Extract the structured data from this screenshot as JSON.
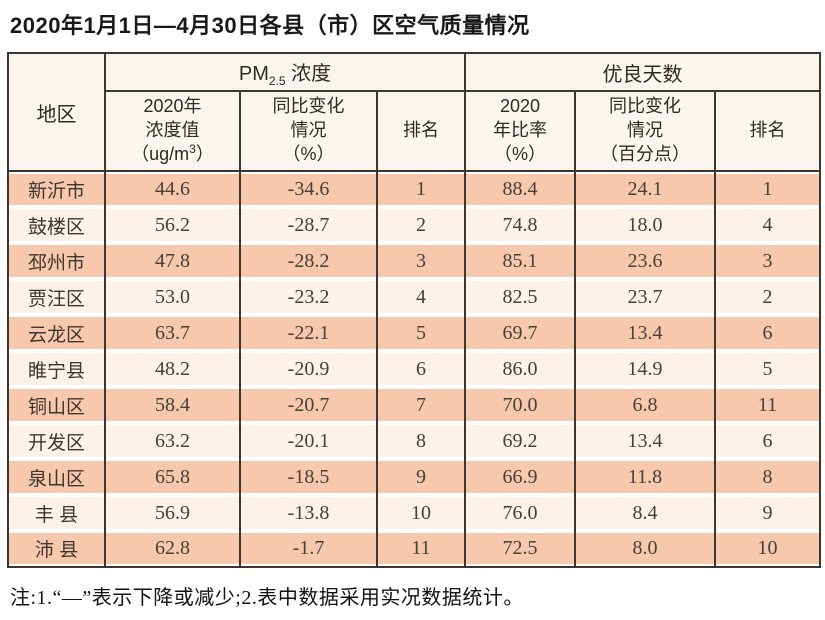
{
  "title": "2020年1月1日—4月30日各县（市）区空气质量情况",
  "note": "注:1.“—”表示下降或减少;2.表中数据采用实况数据统计。",
  "table": {
    "header": {
      "region": "地区",
      "pm25_group": {
        "prefix": "PM",
        "sub": "2.5",
        "suffix": " 浓度"
      },
      "good_days_group": "优良天数",
      "pm25_value": {
        "line1": "2020年",
        "line2": "浓度值",
        "unit_pre": "（ug/m",
        "unit_sup": "3",
        "unit_post": "）"
      },
      "pm25_change": {
        "line1": "同比变化",
        "line2": "情况",
        "line3": "（%）"
      },
      "pm25_rank": "排名",
      "ratio": {
        "line1": "2020",
        "line2": "年比率",
        "line3": "（%）"
      },
      "ratio_change": {
        "line1": "同比变化",
        "line2": "情况",
        "line3": "（百分点）"
      },
      "ratio_rank": "排名"
    }
  },
  "chart_data": {
    "type": "table",
    "title": "2020年1月1日—4月30日各县（市）区空气质量情况",
    "column_groups": [
      "PM2.5浓度",
      "优良天数"
    ],
    "columns": [
      "地区",
      "2020年浓度值（ug/m³）",
      "同比变化情况（%）",
      "排名",
      "2020年比率（%）",
      "同比变化情况（百分点）",
      "排名"
    ],
    "rows": [
      [
        "新沂市",
        "44.6",
        "-34.6",
        "1",
        "88.4",
        "24.1",
        "1"
      ],
      [
        "鼓楼区",
        "56.2",
        "-28.7",
        "2",
        "74.8",
        "18.0",
        "4"
      ],
      [
        "邳州市",
        "47.8",
        "-28.2",
        "3",
        "85.1",
        "23.6",
        "3"
      ],
      [
        "贾汪区",
        "53.0",
        "-23.2",
        "4",
        "82.5",
        "23.7",
        "2"
      ],
      [
        "云龙区",
        "63.7",
        "-22.1",
        "5",
        "69.7",
        "13.4",
        "6"
      ],
      [
        "睢宁县",
        "48.2",
        "-20.9",
        "6",
        "86.0",
        "14.9",
        "5"
      ],
      [
        "铜山区",
        "58.4",
        "-20.7",
        "7",
        "70.0",
        "6.8",
        "11"
      ],
      [
        "开发区",
        "63.2",
        "-20.1",
        "8",
        "69.2",
        "13.4",
        "6"
      ],
      [
        "泉山区",
        "65.8",
        "-18.5",
        "9",
        "66.9",
        "11.8",
        "8"
      ],
      [
        "丰 县",
        "56.9",
        "-13.8",
        "10",
        "76.0",
        "8.4",
        "9"
      ],
      [
        "沛 县",
        "62.8",
        "-1.7",
        "11",
        "72.5",
        "8.0",
        "10"
      ]
    ],
    "note": "注:1.“—”表示下降或减少;2.表中数据采用实况数据统计。",
    "stripe_colors": {
      "odd_row": "#f8c8ac",
      "even_row": "#fdf2ea",
      "border": "#3e3731"
    }
  }
}
